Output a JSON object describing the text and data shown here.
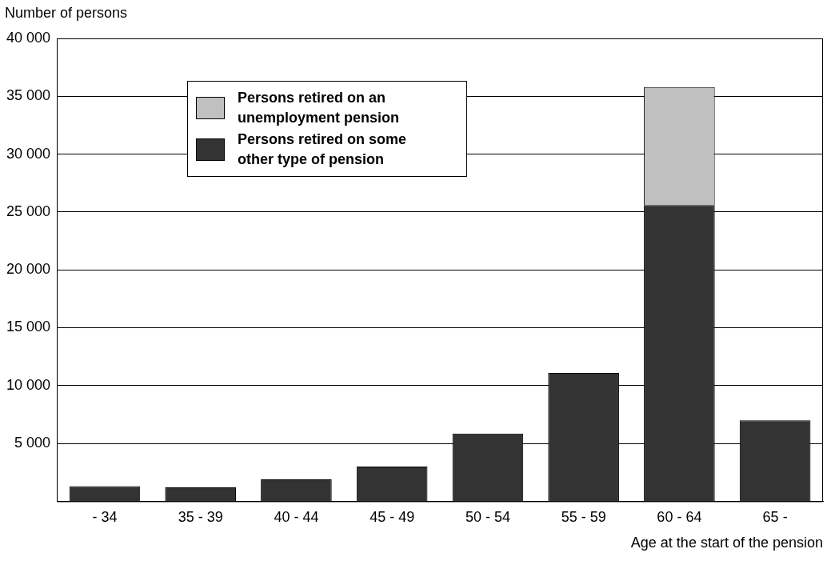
{
  "chart_data": {
    "type": "bar",
    "xlabel": "Age at the start of the pension",
    "ylabel": "Number of persons",
    "categories": [
      "- 34",
      "35 - 39",
      "40 - 44",
      "45 - 49",
      "50 - 54",
      "55 - 59",
      "60 - 64",
      "65 -"
    ],
    "stacked": true,
    "series": [
      {
        "name": "Persons retired on some other type of pension",
        "color": "#333333",
        "values": [
          1300,
          1200,
          1900,
          3000,
          5850,
          11100,
          25600,
          7000
        ]
      },
      {
        "name": "Persons retired on an unemployment pension",
        "color": "#c0c0c0",
        "values": [
          null,
          null,
          null,
          null,
          null,
          null,
          10200,
          null
        ]
      }
    ],
    "ylim": [
      0,
      40000
    ],
    "yticks": [
      {
        "value": 5000,
        "label": "5 000"
      },
      {
        "value": 10000,
        "label": "10 000"
      },
      {
        "value": 15000,
        "label": "15 000"
      },
      {
        "value": 20000,
        "label": "20 000"
      },
      {
        "value": 25000,
        "label": "25 000"
      },
      {
        "value": 30000,
        "label": "30 000"
      },
      {
        "value": 35000,
        "label": "35 000"
      },
      {
        "value": 40000,
        "label": "40 000"
      }
    ],
    "grid": "y",
    "legend": "top left"
  }
}
